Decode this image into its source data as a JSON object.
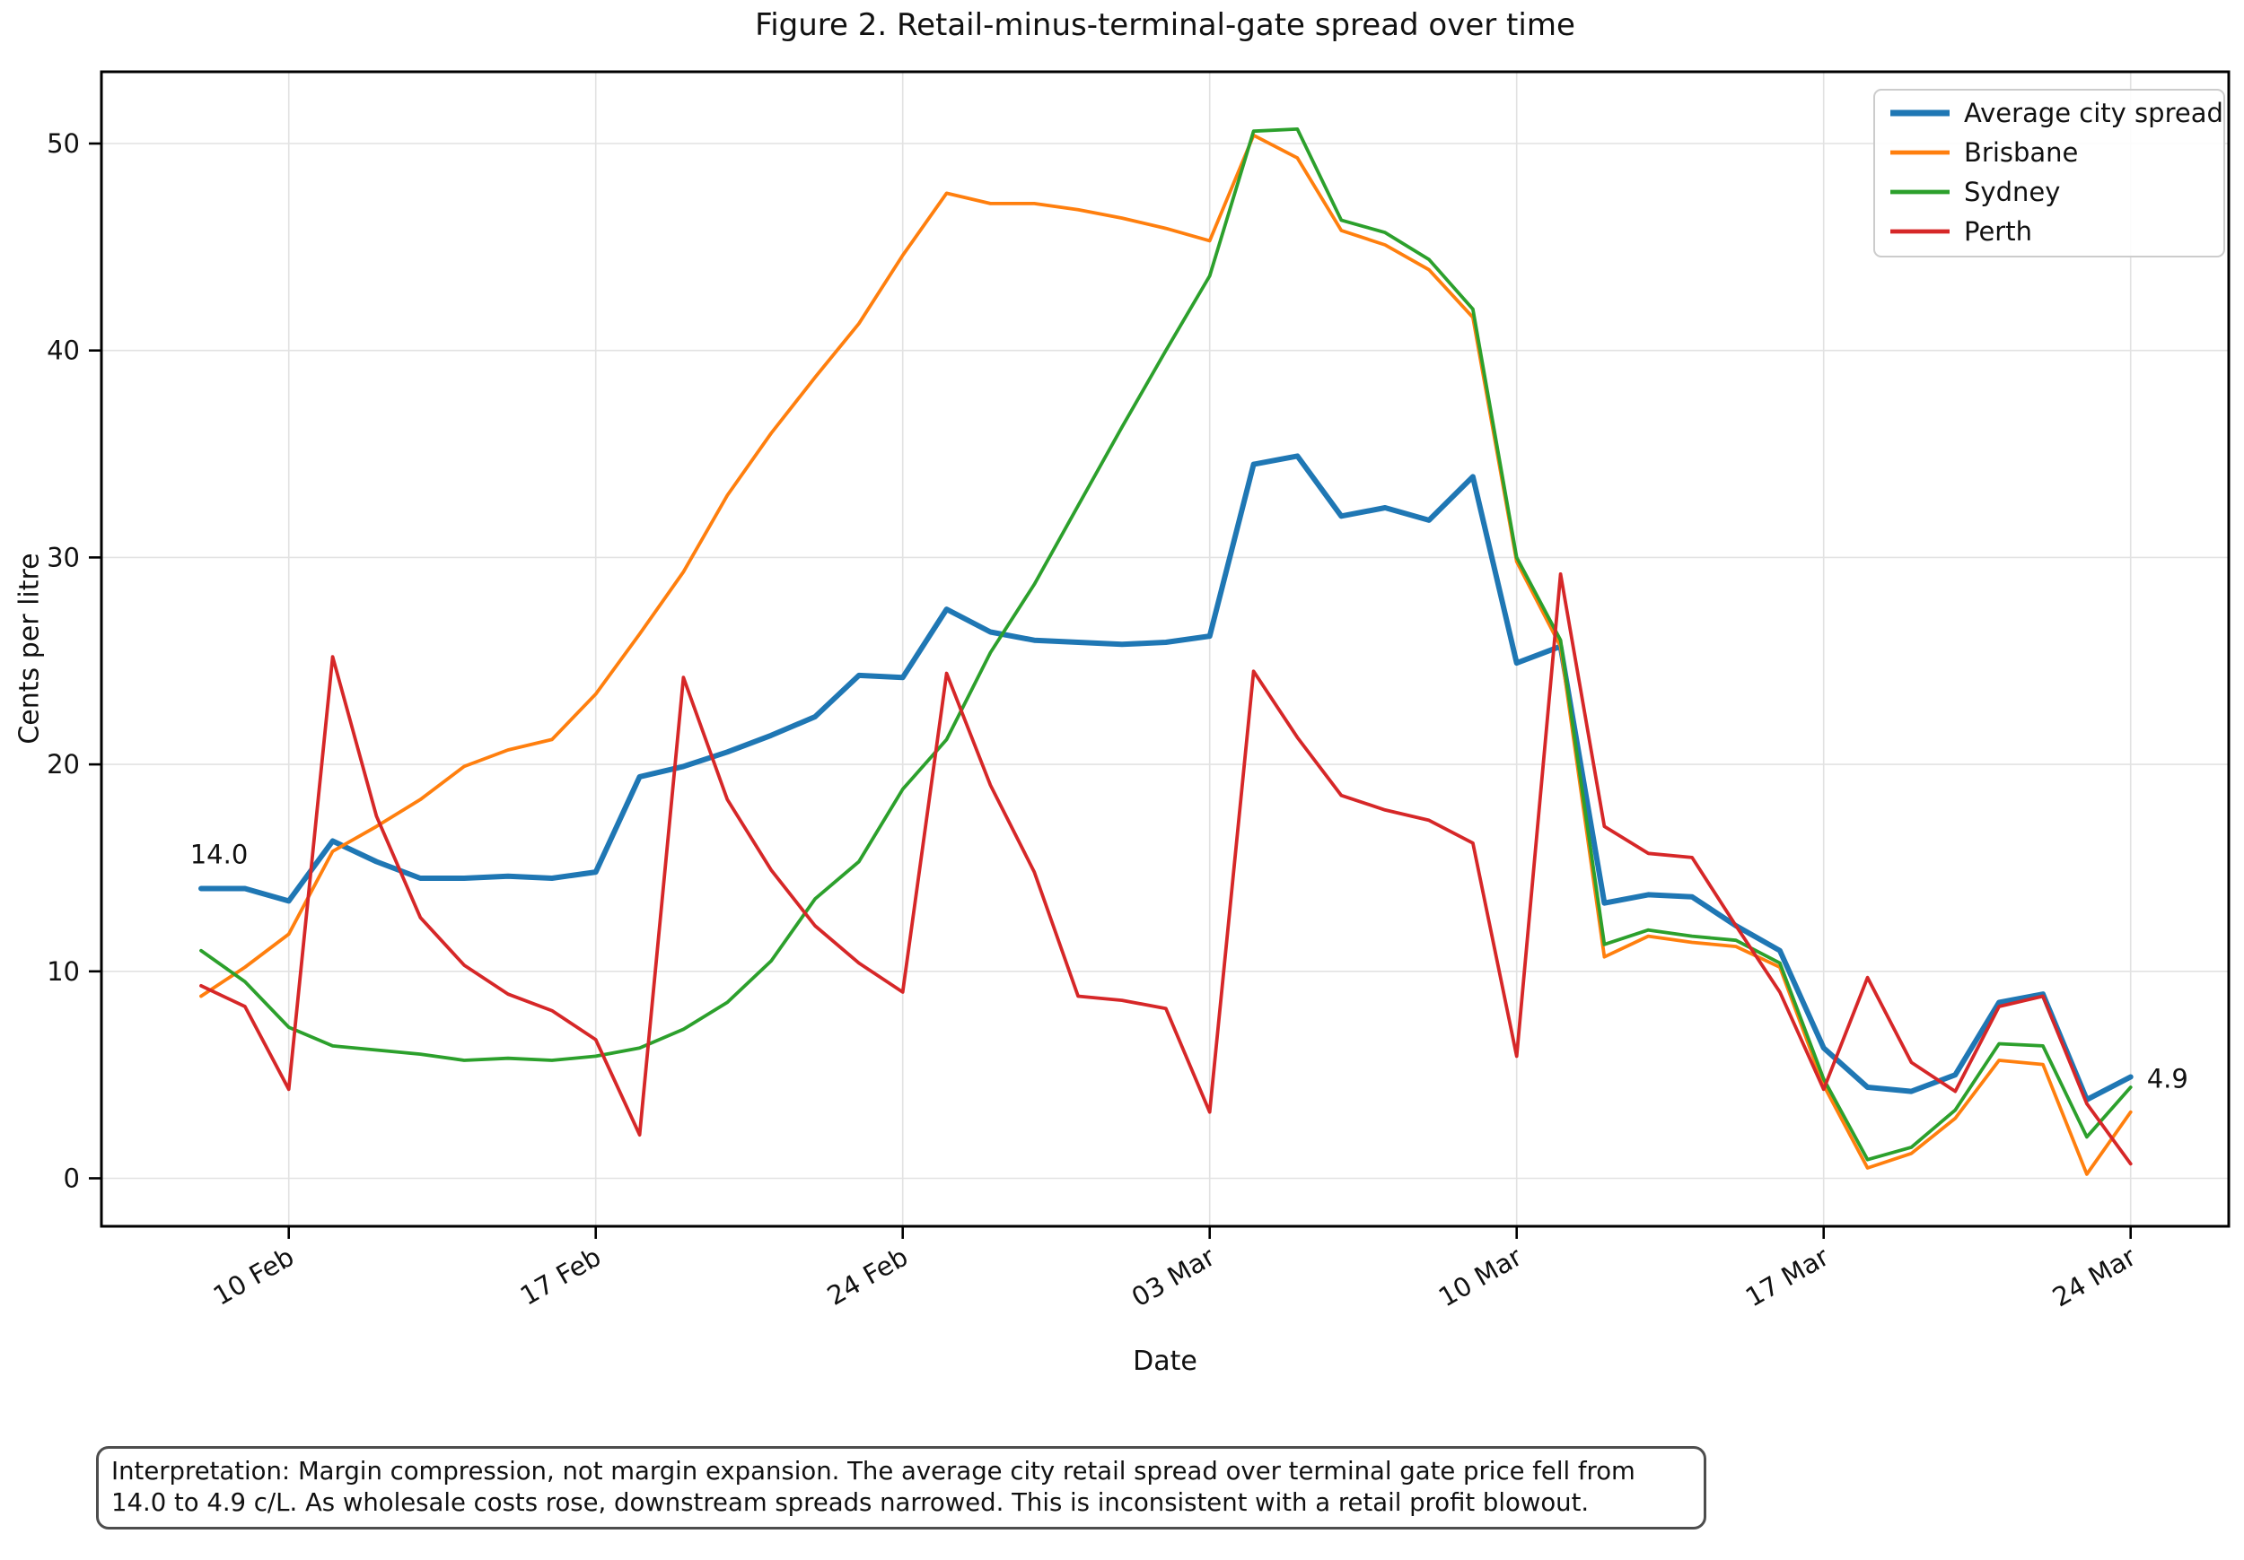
{
  "figure": {
    "title": "Figure 2. Retail-minus-terminal-gate spread over time",
    "xlabel": "Date",
    "ylabel": "Cents per litre",
    "interpretation": "Interpretation: Margin compression, not margin expansion. The average city retail spread over terminal gate price fell from 14.0 to 4.9 c/L. As wholesale costs rose, downstream spreads narrowed. This is inconsistent with a retail profit blowout."
  },
  "chart_data": {
    "type": "line",
    "title": "Figure 2. Retail-minus-terminal-gate spread over time",
    "xlabel": "Date",
    "ylabel": "Cents per litre",
    "grid": true,
    "legend_position": "upper right",
    "y_ticks": [
      0,
      10,
      20,
      30,
      40,
      50
    ],
    "ylim": [
      -2.3,
      53.5
    ],
    "x_tick_labels": [
      "10 Feb",
      "17 Feb",
      "24 Feb",
      "03 Mar",
      "10 Mar",
      "17 Mar",
      "24 Mar"
    ],
    "x_tick_indices": [
      2,
      9,
      16,
      23,
      30,
      37,
      44
    ],
    "x": [
      "08 Feb",
      "09 Feb",
      "10 Feb",
      "11 Feb",
      "12 Feb",
      "13 Feb",
      "14 Feb",
      "15 Feb",
      "16 Feb",
      "17 Feb",
      "18 Feb",
      "19 Feb",
      "20 Feb",
      "21 Feb",
      "22 Feb",
      "23 Feb",
      "24 Feb",
      "25 Feb",
      "26 Feb",
      "27 Feb",
      "28 Feb",
      "01 Mar",
      "02 Mar",
      "03 Mar",
      "04 Mar",
      "05 Mar",
      "06 Mar",
      "07 Mar",
      "08 Mar",
      "09 Mar",
      "10 Mar",
      "11 Mar",
      "12 Mar",
      "13 Mar",
      "14 Mar",
      "15 Mar",
      "16 Mar",
      "17 Mar",
      "18 Mar",
      "19 Mar",
      "20 Mar",
      "21 Mar",
      "22 Mar",
      "23 Mar",
      "24 Mar"
    ],
    "series": [
      {
        "name": "Average city spread",
        "color": "#1f77b4",
        "linewidth": 6,
        "values": [
          14.0,
          14.0,
          13.4,
          16.3,
          15.3,
          14.5,
          14.5,
          14.6,
          14.5,
          14.8,
          19.4,
          19.9,
          20.6,
          21.4,
          22.3,
          24.3,
          24.2,
          27.5,
          26.4,
          26.0,
          25.9,
          25.8,
          25.9,
          26.2,
          34.5,
          34.9,
          32.0,
          32.4,
          31.8,
          33.9,
          24.9,
          25.7,
          13.3,
          13.7,
          13.6,
          12.2,
          11.0,
          6.3,
          4.4,
          4.2,
          5.0,
          8.5,
          8.9,
          3.8,
          4.9
        ]
      },
      {
        "name": "Brisbane",
        "color": "#ff7f0e",
        "linewidth": 3.8,
        "values": [
          8.8,
          10.2,
          11.8,
          15.8,
          17.0,
          18.3,
          19.9,
          20.7,
          21.2,
          23.4,
          26.3,
          29.3,
          33.0,
          36.0,
          38.7,
          41.3,
          44.6,
          47.6,
          47.1,
          47.1,
          46.8,
          46.4,
          45.9,
          45.3,
          50.4,
          49.3,
          45.8,
          45.1,
          43.9,
          41.6,
          29.8,
          25.7,
          10.7,
          11.7,
          11.4,
          11.2,
          10.2,
          4.5,
          0.5,
          1.2,
          2.9,
          5.7,
          5.5,
          0.2,
          3.2
        ]
      },
      {
        "name": "Sydney",
        "color": "#2ca02c",
        "linewidth": 3.8,
        "values": [
          11.0,
          9.5,
          7.3,
          6.4,
          6.2,
          6.0,
          5.7,
          5.8,
          5.7,
          5.9,
          6.3,
          7.2,
          8.5,
          10.5,
          13.5,
          15.3,
          18.8,
          21.2,
          25.4,
          28.7,
          32.5,
          36.3,
          40.0,
          43.6,
          50.6,
          50.7,
          46.3,
          45.7,
          44.4,
          42.0,
          30.0,
          26.0,
          11.3,
          12.0,
          11.7,
          11.5,
          10.4,
          4.8,
          0.9,
          1.5,
          3.3,
          6.5,
          6.4,
          2.0,
          4.4
        ]
      },
      {
        "name": "Perth",
        "color": "#d62728",
        "linewidth": 3.8,
        "values": [
          9.3,
          8.3,
          4.3,
          25.2,
          17.5,
          12.6,
          10.3,
          8.9,
          8.1,
          6.7,
          2.1,
          24.2,
          18.3,
          14.9,
          12.2,
          10.4,
          9.0,
          24.4,
          19.0,
          14.8,
          8.8,
          8.6,
          8.2,
          3.2,
          24.5,
          21.3,
          18.5,
          17.8,
          17.3,
          16.2,
          5.9,
          29.2,
          17.0,
          15.7,
          15.5,
          12.2,
          9.0,
          4.3,
          9.7,
          5.6,
          4.2,
          8.3,
          8.8,
          3.6,
          0.7
        ]
      }
    ],
    "annotations": [
      {
        "text": "14.0",
        "series": "Average city spread",
        "x": "08 Feb",
        "value": 14.0
      },
      {
        "text": "4.9",
        "series": "Average city spread",
        "x": "24 Mar",
        "value": 4.9
      }
    ]
  }
}
